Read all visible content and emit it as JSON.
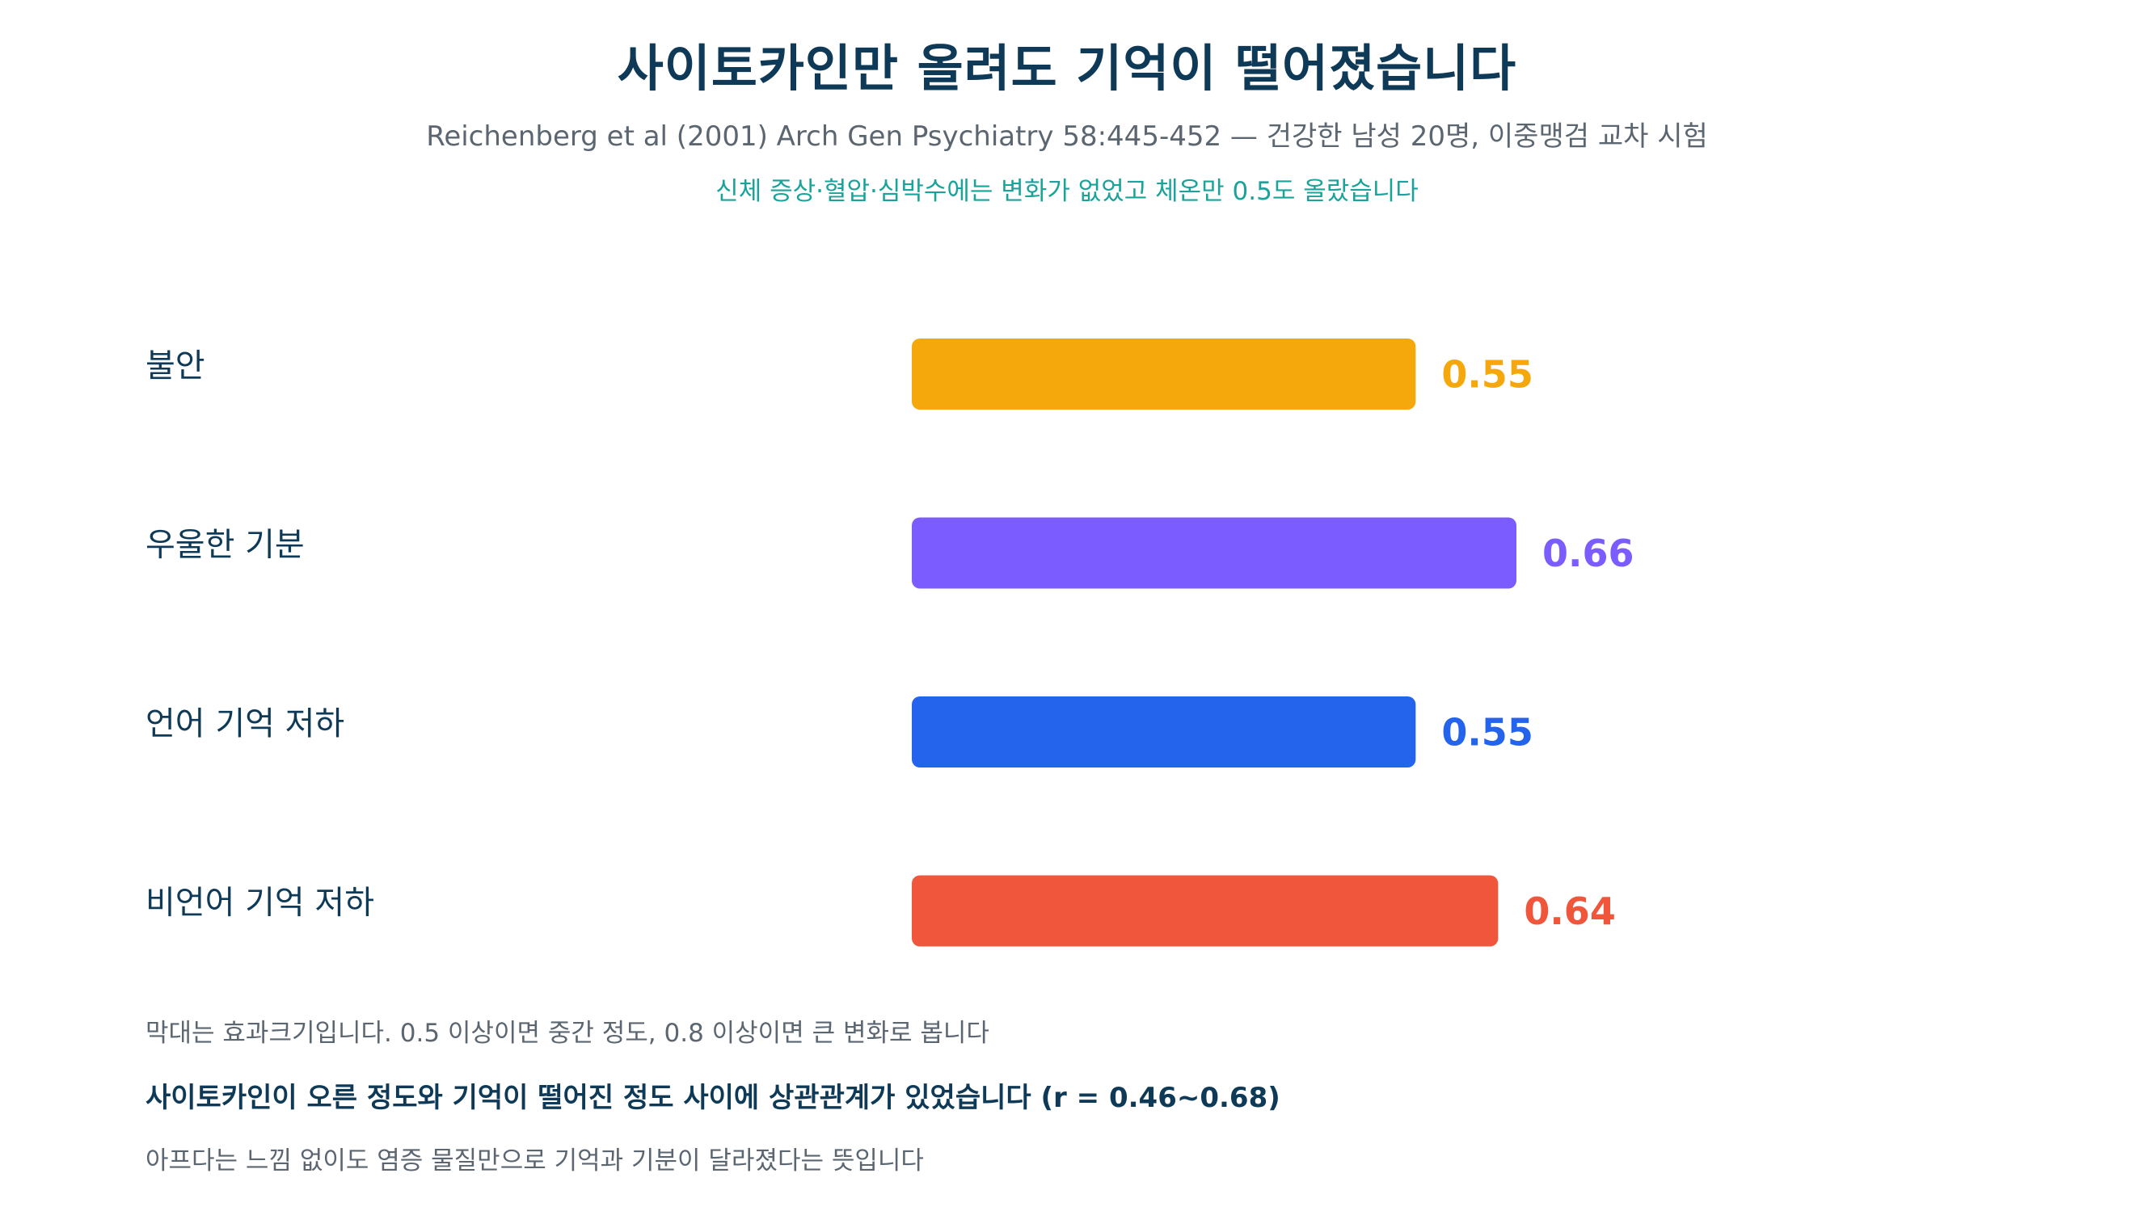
{
  "header": {
    "title": "사이토카인만 올려도 기억이 떨어졌습니다",
    "subtitle": "Reichenberg et al (2001) Arch Gen Psychiatry 58:445-452 — 건강한 남성 20명, 이중맹검 교차 시험",
    "note": "신체 증상·혈압·심박수에는 변화가 없었고 체온만 0.5도 올랐습니다"
  },
  "chart_data": {
    "type": "bar",
    "orientation": "horizontal",
    "categories": [
      "불안",
      "우울한 기분",
      "언어 기억 저하",
      "비언어 기억 저하"
    ],
    "values": [
      0.55,
      0.66,
      0.55,
      0.64
    ],
    "value_labels": [
      "0.55",
      "0.66",
      "0.55",
      "0.64"
    ],
    "colors": [
      "#f5a80c",
      "#7b5cff",
      "#2463eb",
      "#f0563c"
    ],
    "xlim": [
      0,
      1.2
    ],
    "grid": false,
    "legend": "none"
  },
  "footer": {
    "line1": "막대는 효과크기입니다. 0.5 이상이면 중간 정도, 0.8 이상이면 큰 변화로 봅니다",
    "line2": "사이토카인이 오른 정도와 기억이 떨어진 정도 사이에 상관관계가 있었습니다 (r = 0.46~0.68)",
    "line3": "아프다는 느낌 없이도 염증 물질만으로 기억과 기분이 달라졌다는 뜻입니다"
  }
}
